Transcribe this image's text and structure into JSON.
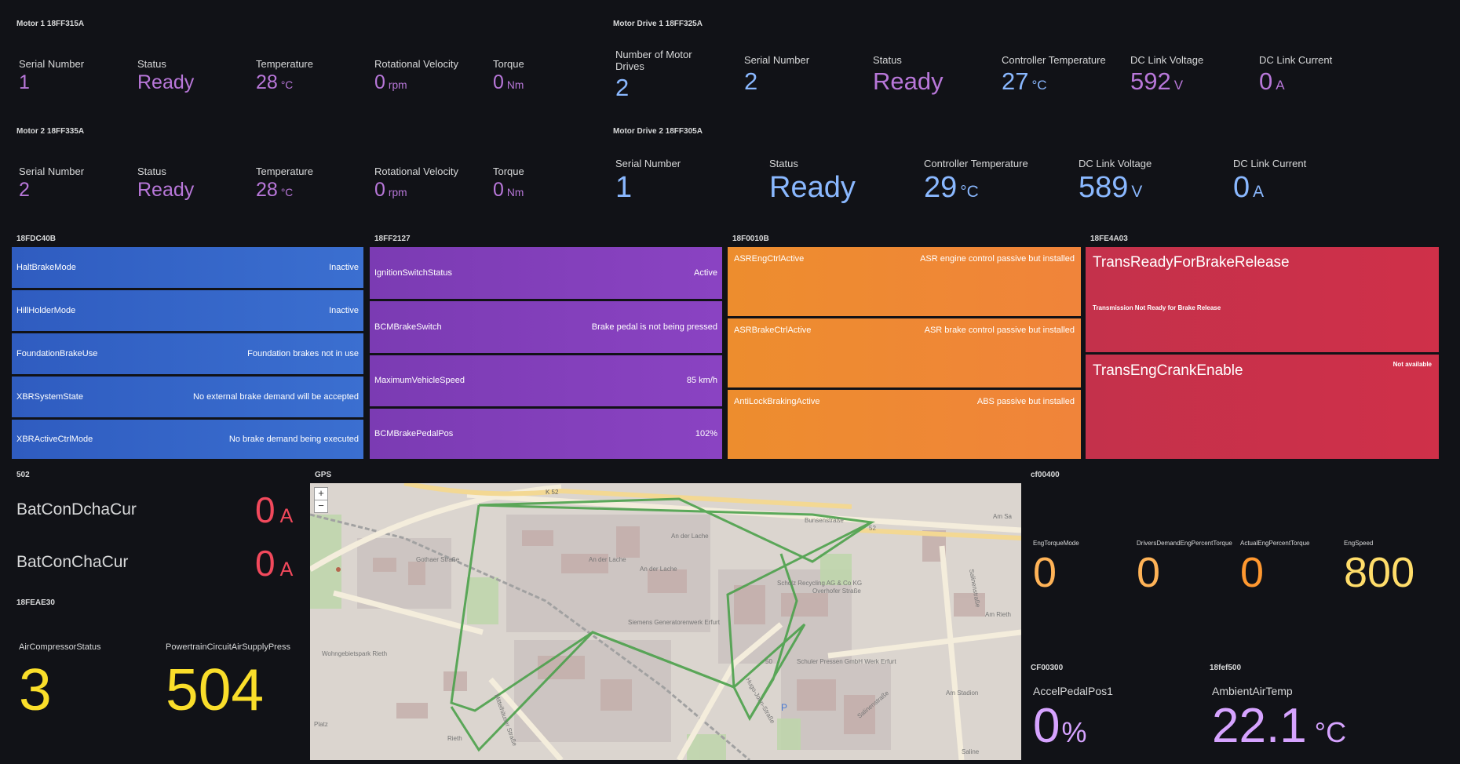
{
  "motor1": {
    "title": "Motor 1 18FF315A",
    "serial": {
      "label": "Serial Number",
      "value": "1"
    },
    "status": {
      "label": "Status",
      "value": "Ready"
    },
    "temp": {
      "label": "Temperature",
      "value": "28",
      "unit": "°C"
    },
    "rpm": {
      "label": "Rotational Velocity",
      "value": "0",
      "unit": "rpm"
    },
    "torque": {
      "label": "Torque",
      "value": "0",
      "unit": "Nm"
    }
  },
  "motor2": {
    "title": "Motor 2 18FF335A",
    "serial": {
      "label": "Serial Number",
      "value": "2"
    },
    "status": {
      "label": "Status",
      "value": "Ready"
    },
    "temp": {
      "label": "Temperature",
      "value": "28",
      "unit": "°C"
    },
    "rpm": {
      "label": "Rotational Velocity",
      "value": "0",
      "unit": "rpm"
    },
    "torque": {
      "label": "Torque",
      "value": "0",
      "unit": "Nm"
    }
  },
  "drive1": {
    "title": "Motor Drive 1 18FF325A",
    "drives": {
      "label": "Number of Motor Drives",
      "value": "2"
    },
    "serial": {
      "label": "Serial Number",
      "value": "2"
    },
    "status": {
      "label": "Status",
      "value": "Ready"
    },
    "ctemp": {
      "label": "Controller Temperature",
      "value": "27",
      "unit": "°C"
    },
    "dcv": {
      "label": "DC Link Voltage",
      "value": "592",
      "unit": "V"
    },
    "dca": {
      "label": "DC Link Current",
      "value": "0",
      "unit": "A"
    }
  },
  "drive2": {
    "title": "Motor Drive 2 18FF305A",
    "serial": {
      "label": "Serial Number",
      "value": "1"
    },
    "status": {
      "label": "Status",
      "value": "Ready"
    },
    "ctemp": {
      "label": "Controller Temperature",
      "value": "29",
      "unit": "°C"
    },
    "dcv": {
      "label": "DC Link Voltage",
      "value": "589",
      "unit": "V"
    },
    "dca": {
      "label": "DC Link Current",
      "value": "0",
      "unit": "A"
    }
  },
  "brakes": {
    "title": "18FDC40B",
    "rows": [
      {
        "key": "HaltBrakeMode",
        "value": "Inactive"
      },
      {
        "key": "HillHolderMode",
        "value": "Inactive"
      },
      {
        "key": "FoundationBrakeUse",
        "value": "Foundation brakes not in use"
      },
      {
        "key": "XBRSystemState",
        "value": "No external brake demand will be accepted"
      },
      {
        "key": "XBRActiveCtrlMode",
        "value": "No brake demand being executed"
      }
    ]
  },
  "bcm": {
    "title": "18FF2127",
    "rows": [
      {
        "key": "IgnitionSwitchStatus",
        "value": "Active"
      },
      {
        "key": "BCMBrakeSwitch",
        "value": "Brake pedal is not being pressed"
      },
      {
        "key": "MaximumVehicleSpeed",
        "value": "85 km/h"
      },
      {
        "key": "BCMBrakePedalPos",
        "value": "102%"
      }
    ]
  },
  "asr": {
    "title": "18F0010B",
    "rows": [
      {
        "key": "ASREngCtrlActive",
        "value": "ASR engine control passive but installed"
      },
      {
        "key": "ASRBrakeCtrlActive",
        "value": "ASR brake control passive but installed"
      },
      {
        "key": "AntiLockBrakingActive",
        "value": "ABS passive but installed"
      }
    ]
  },
  "trans": {
    "title": "18FE4A03",
    "rows": [
      {
        "key": "TransReadyForBrakeRelease",
        "value": "Transmission Not Ready for Brake Release"
      },
      {
        "key": "TransEngCrankEnable",
        "value": "Not available"
      }
    ]
  },
  "bat": {
    "title": "502",
    "rows": [
      {
        "label": "BatConDchaCur",
        "value": "0",
        "unit": "A"
      },
      {
        "label": "BatConChaCur",
        "value": "0",
        "unit": "A"
      }
    ]
  },
  "air": {
    "title": "18FEAE30",
    "comp": {
      "label": "AirCompressorStatus",
      "value": "3"
    },
    "press": {
      "label": "PowertrainCircuitAirSupplyPress",
      "value": "504"
    }
  },
  "gps": {
    "title": "GPS",
    "zoom_in": "+",
    "zoom_out": "−",
    "streets": [
      "K 52",
      "Bunsenstraße",
      "52",
      "An der Lache",
      "An der Lache",
      "Scholz Recycling AG & Co KG",
      "Siemens Generatorenwerk Erfurt",
      "Schuler Pressen GmbH Werk Erfurt",
      "Hugo-John-Straße",
      "Salinenstraße",
      "Am Rieth",
      "Rieth",
      "Wohngebietspark Rieth",
      "Gothaer Straße",
      "Mittelhäuser Straße",
      "Platz",
      "Overhofer Straße",
      "An der Lache",
      "50",
      "P",
      "Am Stadion",
      "Salinenstraße",
      "Am Sa",
      "Saline"
    ]
  },
  "eng": {
    "title": "cf00400",
    "items": [
      {
        "label": "EngTorqueMode",
        "value": "0",
        "color": "#ffb357"
      },
      {
        "label": "DriversDemandEngPercentTorque",
        "value": "0",
        "color": "#ffb357"
      },
      {
        "label": "ActualEngPercentTorque",
        "value": "0",
        "color": "#ff9830"
      },
      {
        "label": "EngSpeed",
        "value": "800",
        "color": "#ffdd6a"
      }
    ]
  },
  "pedal": {
    "title": "CF00300",
    "label": "AccelPedalPos1",
    "value": "0",
    "unit": "%"
  },
  "ambient": {
    "title": "18fef500",
    "label": "AmbientAirTemp",
    "value": "22.1",
    "unit": "°C"
  },
  "colors": {
    "bg": "#111217",
    "purple": "#b877d9",
    "blue": "#8ab8ff",
    "red": "#f2495c",
    "yellow": "#fade2a",
    "orange": "#ff9830",
    "route": "#3d9a3d"
  }
}
